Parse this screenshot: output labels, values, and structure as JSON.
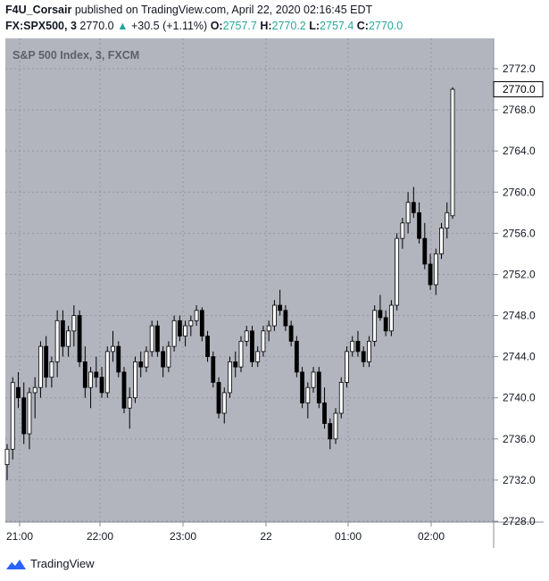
{
  "header": {
    "author": "F4U_Corsair",
    "published_text": "published on TradingView.com, April 22, 2020 02:16:45 EDT",
    "symbol": "FX:SPX500, 3",
    "last": "2770.0",
    "change_arrow": "▲",
    "change": "+30.5 (+1.11%)",
    "o_label": "O:",
    "o_value": "2757.7",
    "h_label": "H:",
    "h_value": "2770.2",
    "l_label": "L:",
    "l_value": "2757.4",
    "c_label": "C:",
    "c_value": "2770.0"
  },
  "footer": {
    "brand": "TradingView",
    "logo_icon": "tradingview-logo-icon"
  },
  "colors": {
    "plot_bg": "#b2b5be",
    "accent": "#26a69a",
    "candle": "#000000",
    "brand": "#2962ff"
  },
  "chart_data": {
    "type": "candlestick",
    "title": "S&P 500 Index, 3, FXCM",
    "ylim": [
      2728,
      2774
    ],
    "y_ticks": [
      "2772.0",
      "2768.0",
      "2764.0",
      "2760.0",
      "2756.0",
      "2752.0",
      "2748.0",
      "2744.0",
      "2740.0",
      "2736.0",
      "2732.0",
      "2728.0"
    ],
    "x_ticks": [
      "21:00",
      "22:00",
      "23:00",
      "22",
      "01:00",
      "02:00"
    ],
    "last_price_label": "2770.0",
    "grid": true,
    "candles": [
      [
        2733.5,
        2735.5,
        2732,
        2735
      ],
      [
        2735,
        2742,
        2734,
        2741.5
      ],
      [
        2741,
        2742.5,
        2739,
        2740
      ],
      [
        2740,
        2741.5,
        2735.5,
        2736.5
      ],
      [
        2736.5,
        2741,
        2735,
        2740.5
      ],
      [
        2740.5,
        2742,
        2738,
        2741
      ],
      [
        2741,
        2745.5,
        2740,
        2745
      ],
      [
        2745,
        2746,
        2741,
        2742
      ],
      [
        2742,
        2744,
        2741,
        2743.5
      ],
      [
        2743.5,
        2748.5,
        2742,
        2747.5
      ],
      [
        2747.5,
        2748.5,
        2744,
        2745
      ],
      [
        2745,
        2747,
        2744,
        2746.5
      ],
      [
        2746.5,
        2749,
        2745,
        2748
      ],
      [
        2748,
        2748.5,
        2743,
        2743.5
      ],
      [
        2743.5,
        2745,
        2740,
        2741
      ],
      [
        2741,
        2743,
        2739,
        2742.5
      ],
      [
        2742.5,
        2744,
        2741,
        2742
      ],
      [
        2742,
        2743,
        2740,
        2740.5
      ],
      [
        2740.5,
        2745,
        2740,
        2744.5
      ],
      [
        2744.5,
        2746.5,
        2743.5,
        2745
      ],
      [
        2745,
        2745.5,
        2742,
        2742.5
      ],
      [
        2742.5,
        2743,
        2738.5,
        2739
      ],
      [
        2739,
        2741,
        2737,
        2740
      ],
      [
        2740,
        2744,
        2739.5,
        2743.5
      ],
      [
        2743.5,
        2744.5,
        2742,
        2743
      ],
      [
        2743,
        2745,
        2742.5,
        2744.5
      ],
      [
        2744.5,
        2747.5,
        2744,
        2747
      ],
      [
        2747,
        2747.5,
        2744,
        2744.5
      ],
      [
        2744.5,
        2745,
        2742,
        2743
      ],
      [
        2743,
        2745.5,
        2742.5,
        2745
      ],
      [
        2745,
        2748,
        2744.5,
        2747.5
      ],
      [
        2747.5,
        2748,
        2745.5,
        2746
      ],
      [
        2746,
        2747.5,
        2745,
        2747
      ],
      [
        2747,
        2748,
        2746,
        2747.5
      ],
      [
        2747.5,
        2749,
        2747,
        2748.5
      ],
      [
        2748.5,
        2748.8,
        2745.5,
        2746
      ],
      [
        2746,
        2746.5,
        2743.5,
        2744
      ],
      [
        2744,
        2744.5,
        2741,
        2741.5
      ],
      [
        2741.5,
        2742,
        2738,
        2738.5
      ],
      [
        2738.5,
        2741,
        2737.5,
        2740.5
      ],
      [
        2740.5,
        2744,
        2740,
        2743.5
      ],
      [
        2743.5,
        2744.5,
        2742,
        2743
      ],
      [
        2743,
        2746,
        2742.5,
        2745.5
      ],
      [
        2745.5,
        2747,
        2745,
        2746.5
      ],
      [
        2746.5,
        2747,
        2743,
        2743.5
      ],
      [
        2743.5,
        2745,
        2743,
        2744.5
      ],
      [
        2744.5,
        2747,
        2744,
        2746.5
      ],
      [
        2746.5,
        2747.5,
        2745.5,
        2747
      ],
      [
        2747,
        2749.5,
        2746.5,
        2749
      ],
      [
        2749,
        2750.5,
        2748,
        2748.5
      ],
      [
        2748.5,
        2749,
        2746.5,
        2747
      ],
      [
        2747,
        2747.5,
        2745,
        2745.5
      ],
      [
        2745.5,
        2746,
        2742,
        2742.5
      ],
      [
        2742.5,
        2743,
        2739,
        2739.5
      ],
      [
        2739.5,
        2741.5,
        2738,
        2741
      ],
      [
        2741,
        2743,
        2740.5,
        2742.5
      ],
      [
        2742.5,
        2743,
        2739,
        2739.5
      ],
      [
        2739.5,
        2741,
        2737,
        2737.5
      ],
      [
        2737.5,
        2738,
        2735,
        2736
      ],
      [
        2736,
        2739,
        2735.5,
        2738.5
      ],
      [
        2738.5,
        2742,
        2738,
        2741.5
      ],
      [
        2741.5,
        2745,
        2741,
        2744.5
      ],
      [
        2744.5,
        2746,
        2744,
        2745.5
      ],
      [
        2745.5,
        2746.5,
        2744,
        2744.5
      ],
      [
        2744.5,
        2745,
        2743,
        2743.5
      ],
      [
        2743.5,
        2746,
        2743,
        2745.5
      ],
      [
        2745.5,
        2749,
        2745,
        2748.5
      ],
      [
        2748.5,
        2750,
        2747.5,
        2747.8
      ],
      [
        2747.8,
        2748.5,
        2746,
        2746.5
      ],
      [
        2746.5,
        2749.5,
        2746,
        2749
      ],
      [
        2749,
        2756,
        2748.5,
        2755.5
      ],
      [
        2755.5,
        2757.5,
        2754.5,
        2757
      ],
      [
        2757,
        2760,
        2756,
        2759
      ],
      [
        2759,
        2760.5,
        2757.5,
        2758
      ],
      [
        2758,
        2759,
        2755,
        2755.5
      ],
      [
        2755.5,
        2757,
        2752.5,
        2753
      ],
      [
        2753,
        2754,
        2750.5,
        2751
      ],
      [
        2751,
        2754.5,
        2750,
        2754
      ],
      [
        2754,
        2757,
        2753.5,
        2756.5
      ],
      [
        2756.5,
        2759,
        2755.5,
        2758
      ],
      [
        2757.7,
        2770.2,
        2757.4,
        2770
      ]
    ]
  }
}
